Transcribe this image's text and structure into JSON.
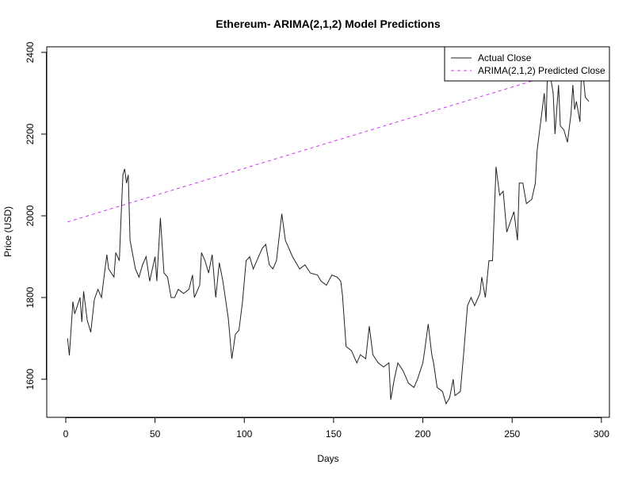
{
  "chart_data": {
    "type": "line",
    "title": "Ethereum- ARIMA(2,1,2) Model Predictions",
    "x_label": "Days",
    "y_label": "Price (USD)",
    "x": [
      1,
      2,
      4,
      5,
      8,
      9,
      10,
      12,
      14,
      16,
      18,
      20,
      22,
      23,
      24,
      27,
      28,
      30,
      31,
      32,
      33,
      34,
      35,
      36,
      39,
      41,
      43,
      45,
      47,
      50,
      51,
      53,
      55,
      57,
      59,
      61,
      63,
      66,
      69,
      71,
      72,
      75,
      76,
      78,
      80,
      82,
      84,
      86,
      88,
      91,
      93,
      95,
      97,
      99,
      101,
      103,
      105,
      107,
      110,
      112,
      114,
      116,
      118,
      121,
      123,
      127,
      131,
      134,
      137,
      141,
      143,
      146,
      149,
      152,
      154,
      155,
      157,
      160,
      163,
      165,
      168,
      170,
      172,
      175,
      178,
      181,
      182,
      184,
      186,
      189,
      192,
      195,
      197,
      200,
      201,
      203,
      205,
      206,
      208,
      211,
      213,
      215,
      217,
      218,
      221,
      223,
      225,
      227,
      229,
      232,
      233,
      235,
      237,
      239,
      241,
      243,
      245,
      247,
      251,
      253,
      254,
      256,
      258,
      261,
      263,
      264,
      266,
      268,
      269,
      270,
      273,
      274,
      276,
      277,
      279,
      281,
      283,
      284,
      285,
      286,
      288,
      289,
      291,
      293
    ],
    "series": [
      {
        "name": "Actual Close",
        "color": "#222222",
        "dash": false,
        "values": [
          1700,
          1658,
          1790,
          1760,
          1800,
          1740,
          1815,
          1745,
          1715,
          1795,
          1820,
          1800,
          1870,
          1905,
          1870,
          1850,
          1910,
          1890,
          2000,
          2100,
          2115,
          2080,
          2100,
          1940,
          1870,
          1850,
          1880,
          1900,
          1840,
          1900,
          1840,
          1995,
          1860,
          1850,
          1800,
          1800,
          1820,
          1810,
          1820,
          1855,
          1800,
          1830,
          1910,
          1890,
          1860,
          1905,
          1800,
          1885,
          1840,
          1750,
          1650,
          1710,
          1720,
          1790,
          1890,
          1900,
          1870,
          1890,
          1920,
          1930,
          1880,
          1870,
          1890,
          2005,
          1940,
          1900,
          1870,
          1880,
          1860,
          1855,
          1840,
          1830,
          1855,
          1850,
          1840,
          1805,
          1680,
          1670,
          1640,
          1660,
          1650,
          1730,
          1660,
          1640,
          1630,
          1640,
          1550,
          1600,
          1640,
          1620,
          1590,
          1580,
          1600,
          1640,
          1670,
          1735,
          1660,
          1640,
          1580,
          1570,
          1540,
          1555,
          1600,
          1560,
          1570,
          1670,
          1780,
          1800,
          1780,
          1810,
          1850,
          1800,
          1890,
          1890,
          2120,
          2050,
          2060,
          1960,
          2010,
          1940,
          2080,
          2080,
          2030,
          2040,
          2080,
          2160,
          2230,
          2300,
          2230,
          2380,
          2300,
          2200,
          2320,
          2220,
          2210,
          2180,
          2250,
          2320,
          2260,
          2280,
          2230,
          2380,
          2290,
          2280
        ]
      },
      {
        "name": "ARIMA(2,1,2) Predicted Close",
        "color": "#cc33ee",
        "dash": true,
        "x": [
          1,
          293
        ],
        "values": [
          1985,
          2372
        ]
      }
    ],
    "xlim": [
      -10.65,
      304.5
    ],
    "ylim": [
      1506.8,
      2413.6
    ],
    "xticks": [
      0,
      50,
      100,
      150,
      200,
      250,
      300
    ],
    "yticks": [
      1600,
      1800,
      2000,
      2200,
      2400
    ],
    "legend": "top-right"
  }
}
